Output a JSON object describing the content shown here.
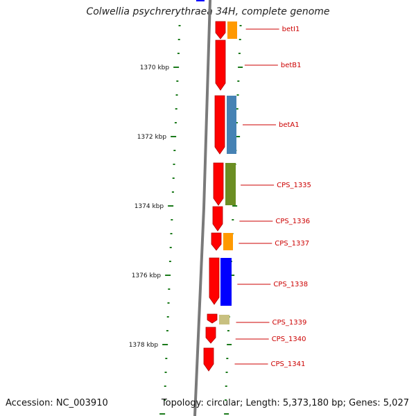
{
  "title": "Colwellia psychrerythraea 34H, complete genome",
  "footer": {
    "accession": "Accession: NC_003910",
    "topology": "Topology: circular; Length: 5,373,180 bp; Genes: 5,027"
  },
  "colors": {
    "backbone": "#7a7a7a",
    "tick": "#1b7a1b",
    "gene_strand": "#ff0000",
    "label": "#cc0000",
    "orange": "#ff9900",
    "blue": "#0000ff",
    "steelblue": "#4682b4",
    "olive": "#6b8e23",
    "khaki": "#c8c080"
  },
  "scale_labels": [
    "1370 kbp",
    "1372 kbp",
    "1374 kbp",
    "1376 kbp",
    "1378 kbp"
  ],
  "genes": [
    {
      "label": "betI1",
      "cog_color": "orange"
    },
    {
      "label": "betB1",
      "cog_color": "none"
    },
    {
      "label": "betA1",
      "cog_color": "steelblue"
    },
    {
      "label": "CPS_1335",
      "cog_color": "olive"
    },
    {
      "label": "CPS_1336",
      "cog_color": "none"
    },
    {
      "label": "CPS_1337",
      "cog_color": "orange"
    },
    {
      "label": "CPS_1338",
      "cog_color": "blue"
    },
    {
      "label": "CPS_1339",
      "cog_color": "khaki"
    },
    {
      "label": "CPS_1340",
      "cog_color": "none"
    },
    {
      "label": "CPS_1341",
      "cog_color": "none"
    }
  ]
}
